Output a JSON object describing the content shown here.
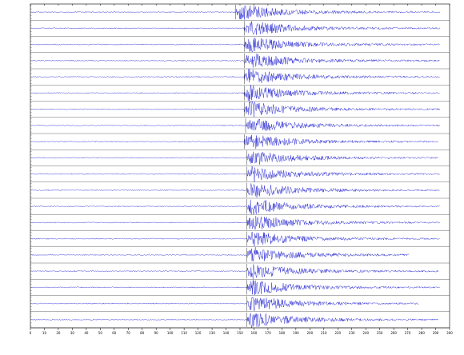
{
  "chart_data": {
    "type": "seismogram",
    "xlim": [
      0,
      300
    ],
    "xticks": [
      0,
      10,
      20,
      30,
      40,
      50,
      60,
      70,
      80,
      90,
      100,
      110,
      120,
      130,
      140,
      150,
      160,
      170,
      180,
      190,
      200,
      210,
      220,
      230,
      240,
      250,
      260,
      270,
      280,
      290,
      300
    ],
    "color": "#1f1fd0",
    "traces": [
      {
        "onset": 147,
        "end": 293
      },
      {
        "onset": 153,
        "end": 293
      },
      {
        "onset": 153,
        "end": 293
      },
      {
        "onset": 153,
        "end": 293
      },
      {
        "onset": 153,
        "end": 293
      },
      {
        "onset": 153,
        "end": 293
      },
      {
        "onset": 153,
        "end": 293
      },
      {
        "onset": 154,
        "end": 293
      },
      {
        "onset": 153,
        "end": 292
      },
      {
        "onset": 155,
        "end": 292
      },
      {
        "onset": 155,
        "end": 293
      },
      {
        "onset": 155,
        "end": 293
      },
      {
        "onset": 155,
        "end": 293
      },
      {
        "onset": 155,
        "end": 293
      },
      {
        "onset": 155,
        "end": 293
      },
      {
        "onset": 155,
        "end": 271
      },
      {
        "onset": 155,
        "end": 292
      },
      {
        "onset": 155,
        "end": 293
      },
      {
        "onset": 155,
        "end": 278
      },
      {
        "onset": 155,
        "end": 292
      }
    ]
  }
}
